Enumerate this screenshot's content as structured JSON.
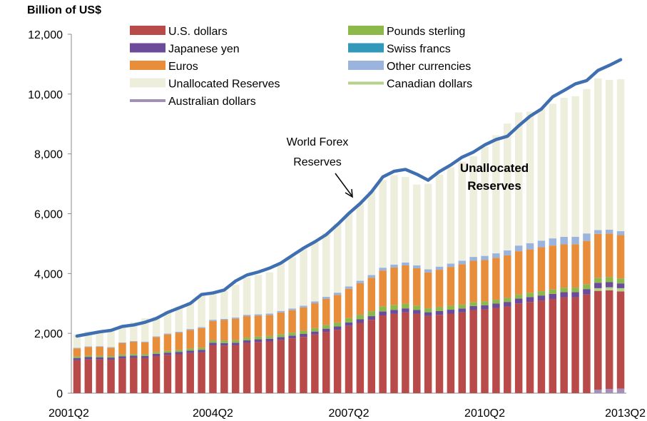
{
  "chart_data": {
    "type": "bar",
    "stacked": true,
    "unit_label": "Billion of US$",
    "title": "",
    "xlabel": "",
    "ylabel": "",
    "ylim": [
      0,
      12000
    ],
    "yticks": [
      "0",
      "2,000",
      "4,000",
      "6,000",
      "8,000",
      "10,000",
      "12,000"
    ],
    "ytick_values": [
      0,
      2000,
      4000,
      6000,
      8000,
      10000,
      12000
    ],
    "grid": false,
    "legend_position": "top",
    "categories": [
      "2001Q2",
      "2001Q3",
      "2001Q4",
      "2002Q1",
      "2002Q2",
      "2002Q3",
      "2002Q4",
      "2003Q1",
      "2003Q2",
      "2003Q3",
      "2003Q4",
      "2004Q1",
      "2004Q2",
      "2004Q3",
      "2004Q4",
      "2005Q1",
      "2005Q2",
      "2005Q3",
      "2005Q4",
      "2006Q1",
      "2006Q2",
      "2006Q3",
      "2006Q4",
      "2007Q1",
      "2007Q2",
      "2007Q3",
      "2007Q4",
      "2008Q1",
      "2008Q2",
      "2008Q3",
      "2008Q4",
      "2009Q1",
      "2009Q2",
      "2009Q3",
      "2009Q4",
      "2010Q1",
      "2010Q2",
      "2010Q3",
      "2010Q4",
      "2011Q1",
      "2011Q2",
      "2011Q3",
      "2011Q4",
      "2012Q1",
      "2012Q2",
      "2012Q3",
      "2012Q4",
      "2013Q1",
      "2013Q2"
    ],
    "xtick_labels": [
      "2001Q2",
      "2004Q2",
      "2007Q2",
      "2010Q2",
      "2013Q2"
    ],
    "series": [
      {
        "name": "Australian dollars",
        "color": "#a48fbb",
        "values": [
          0,
          0,
          0,
          0,
          0,
          0,
          0,
          0,
          0,
          0,
          0,
          0,
          0,
          0,
          0,
          0,
          0,
          0,
          0,
          0,
          0,
          0,
          0,
          0,
          0,
          0,
          0,
          0,
          0,
          0,
          0,
          0,
          0,
          0,
          0,
          0,
          0,
          0,
          0,
          0,
          0,
          0,
          0,
          0,
          0,
          0,
          120,
          140,
          150
        ]
      },
      {
        "name": "U.S. dollars",
        "color": "#b94a4a",
        "values": [
          1100,
          1130,
          1130,
          1120,
          1160,
          1180,
          1170,
          1240,
          1280,
          1300,
          1340,
          1370,
          1600,
          1590,
          1600,
          1680,
          1710,
          1730,
          1780,
          1830,
          1880,
          1960,
          2050,
          2120,
          2250,
          2350,
          2450,
          2600,
          2650,
          2700,
          2650,
          2580,
          2620,
          2660,
          2700,
          2780,
          2800,
          2850,
          2900,
          3000,
          3050,
          3100,
          3150,
          3200,
          3200,
          3300,
          3300,
          3300,
          3250
        ]
      },
      {
        "name": "Canadian dollars",
        "color": "#b4d28c",
        "values": [
          0,
          0,
          0,
          0,
          0,
          0,
          0,
          0,
          0,
          0,
          0,
          0,
          0,
          0,
          0,
          0,
          0,
          0,
          0,
          0,
          0,
          0,
          0,
          0,
          0,
          0,
          0,
          0,
          0,
          0,
          0,
          0,
          0,
          0,
          0,
          0,
          0,
          0,
          0,
          0,
          0,
          0,
          0,
          0,
          0,
          0,
          90,
          100,
          110
        ]
      },
      {
        "name": "Japanese yen",
        "color": "#6b4b9a",
        "values": [
          75,
          75,
          70,
          70,
          75,
          75,
          75,
          75,
          75,
          80,
          80,
          80,
          85,
          85,
          85,
          90,
          90,
          90,
          95,
          95,
          100,
          100,
          105,
          110,
          115,
          120,
          125,
          130,
          135,
          135,
          130,
          125,
          125,
          130,
          130,
          135,
          140,
          145,
          150,
          160,
          165,
          165,
          170,
          175,
          175,
          180,
          180,
          170,
          160
        ]
      },
      {
        "name": "Pounds sterling",
        "color": "#8db84a",
        "values": [
          45,
          45,
          45,
          45,
          50,
          50,
          50,
          55,
          55,
          60,
          65,
          70,
          75,
          75,
          80,
          80,
          85,
          85,
          90,
          95,
          100,
          110,
          120,
          130,
          140,
          150,
          160,
          165,
          160,
          150,
          140,
          130,
          125,
          125,
          125,
          125,
          125,
          125,
          130,
          130,
          135,
          140,
          140,
          145,
          150,
          155,
          160,
          160,
          160
        ]
      },
      {
        "name": "Swiss francs",
        "color": "#3399bb",
        "values": [
          5,
          5,
          5,
          5,
          5,
          5,
          5,
          5,
          5,
          5,
          5,
          5,
          5,
          5,
          5,
          5,
          5,
          5,
          5,
          5,
          5,
          5,
          5,
          5,
          5,
          5,
          5,
          5,
          5,
          5,
          5,
          5,
          5,
          5,
          5,
          5,
          5,
          5,
          5,
          5,
          5,
          5,
          5,
          5,
          5,
          5,
          5,
          5,
          5
        ]
      },
      {
        "name": "Euros",
        "color": "#e88d3a",
        "values": [
          270,
          290,
          300,
          280,
          380,
          410,
          400,
          500,
          550,
          580,
          620,
          650,
          650,
          690,
          720,
          720,
          700,
          700,
          730,
          750,
          780,
          830,
          870,
          920,
          980,
          1050,
          1120,
          1200,
          1250,
          1280,
          1250,
          1200,
          1250,
          1300,
          1350,
          1380,
          1380,
          1400,
          1420,
          1450,
          1450,
          1470,
          1470,
          1450,
          1450,
          1450,
          1470,
          1460,
          1450
        ]
      },
      {
        "name": "Other currencies",
        "color": "#9bb4dd",
        "values": [
          20,
          20,
          20,
          20,
          25,
          25,
          25,
          25,
          30,
          30,
          35,
          35,
          40,
          40,
          40,
          45,
          45,
          50,
          50,
          55,
          60,
          65,
          70,
          75,
          80,
          85,
          90,
          95,
          100,
          100,
          100,
          100,
          105,
          110,
          120,
          130,
          140,
          150,
          170,
          190,
          210,
          220,
          240,
          250,
          250,
          250,
          130,
          130,
          130
        ]
      },
      {
        "name": "Unallocated Reserves",
        "color": "#eeeedd",
        "values": [
          450,
          500,
          520,
          560,
          580,
          630,
          780,
          650,
          760,
          840,
          900,
          1050,
          855,
          940,
          1090,
          1250,
          1320,
          1380,
          1600,
          1720,
          1900,
          1990,
          2130,
          2310,
          2440,
          2580,
          2820,
          2930,
          2990,
          2860,
          2700,
          2860,
          3080,
          3220,
          3310,
          3370,
          3650,
          3950,
          4240,
          4450,
          4400,
          4400,
          4500,
          4650,
          4700,
          4830,
          5070,
          5010,
          5080
        ]
      }
    ],
    "line_series": {
      "name": "World Forex Reserves",
      "color": "#3f6fb0",
      "values": [
        1910,
        1980,
        2050,
        2100,
        2230,
        2280,
        2370,
        2500,
        2700,
        2850,
        3000,
        3300,
        3350,
        3450,
        3750,
        3950,
        4050,
        4180,
        4350,
        4600,
        4850,
        5060,
        5300,
        5640,
        6010,
        6340,
        6730,
        7230,
        7420,
        7480,
        7320,
        7120,
        7410,
        7630,
        7890,
        8060,
        8300,
        8480,
        8590,
        8940,
        9260,
        9500,
        9910,
        10120,
        10340,
        10450,
        10790,
        10960,
        11150
      ]
    },
    "annotations": [
      {
        "text": "World Forex",
        "line2": "Reserves",
        "arrow": true
      },
      {
        "text": "Unallocated",
        "line2": "Reserves",
        "arrow": false
      }
    ],
    "legend": [
      {
        "label": "U.S. dollars",
        "color": "#b94a4a",
        "kind": "box"
      },
      {
        "label": "Pounds sterling",
        "color": "#8db84a",
        "kind": "box"
      },
      {
        "label": "Japanese yen",
        "color": "#6b4b9a",
        "kind": "box"
      },
      {
        "label": "Swiss francs",
        "color": "#3399bb",
        "kind": "box"
      },
      {
        "label": "Euros",
        "color": "#e88d3a",
        "kind": "box"
      },
      {
        "label": "Other currencies",
        "color": "#9bb4dd",
        "kind": "box"
      },
      {
        "label": "Unallocated Reserves",
        "color": "#eeeedd",
        "kind": "box"
      },
      {
        "label": "Canadian dollars",
        "color": "#b4d28c",
        "kind": "line"
      },
      {
        "label": "Australian dollars",
        "color": "#a48fbb",
        "kind": "line"
      }
    ]
  }
}
